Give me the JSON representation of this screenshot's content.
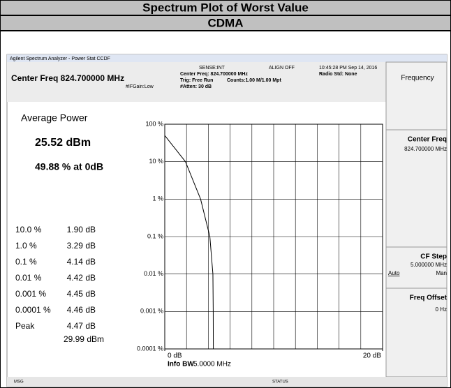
{
  "table": {
    "title": "Spectrum Plot of Worst Value",
    "subtitle": "CDMA"
  },
  "screen": {
    "title_bar": "Agilent Spectrum Analyzer - Power Stat CCDF",
    "center_freq": "Center Freq 824.700000 MHz",
    "sense": "SENSE:INT",
    "align": "ALIGN OFF",
    "datetime": "10:45:28 PM Sep 14, 2016",
    "center_freq_info": "Center Freq: 824.700000 MHz",
    "trig": "Trig: Free Run",
    "counts": "Counts:1.00 M/1.00 Mpt",
    "radio_std": "Radio Std: None",
    "atten": "#Atten: 30 dB",
    "if_gain": "#IFGain:Low",
    "avg_power_label": "Average Power",
    "avg_power": "25.52 dBm",
    "at_0db": "49.88 % at 0dB",
    "stats": [
      [
        "10.0 %",
        "1.90 dB"
      ],
      [
        "1.0 %",
        "3.29 dB"
      ],
      [
        "0.1 %",
        "4.14 dB"
      ],
      [
        "0.01 %",
        "4.42 dB"
      ],
      [
        "0.001 %",
        "4.45 dB"
      ],
      [
        "0.0001 %",
        "4.46 dB"
      ],
      [
        "Peak",
        "4.47 dB"
      ]
    ],
    "peak_dbm": "29.99 dBm",
    "info_bw_label": "Info BW",
    "info_bw": "5.0000 MHz",
    "menu_title": "Frequency",
    "softkeys": [
      {
        "label": "Center Freq",
        "value": "824.700000 MHz"
      },
      {
        "label": "CF Step",
        "value": "5.000000 MHz",
        "auto": "Auto",
        "man": "Man"
      },
      {
        "label": "Freq Offset",
        "value": "0 Hz"
      }
    ],
    "status_msg": "MSG",
    "status": "STATUS"
  },
  "chart_data": {
    "type": "line",
    "log_y": true,
    "grid": true,
    "x": [
      0,
      1.9,
      3.29,
      4.14,
      4.42,
      4.45,
      4.46
    ],
    "values": [
      49.88,
      10,
      1,
      0.1,
      0.01,
      0.001,
      0.0001
    ],
    "color": "#000000",
    "xlim": [
      0,
      20
    ],
    "xticks": [
      {
        "value": 0,
        "label": "0 dB"
      },
      {
        "value": 20,
        "label": "20 dB"
      }
    ],
    "ylim": [
      0.0001,
      100
    ],
    "yticks": [
      {
        "value": 100,
        "label": "100 %"
      },
      {
        "value": 10,
        "label": "10 %"
      },
      {
        "value": 1,
        "label": "1 %"
      },
      {
        "value": 0.1,
        "label": "0.1 %"
      },
      {
        "value": 0.01,
        "label": "0.01 %"
      },
      {
        "value": 0.001,
        "label": "0.001 %"
      },
      {
        "value": 0.0001,
        "label": "0.0001 %"
      }
    ]
  }
}
